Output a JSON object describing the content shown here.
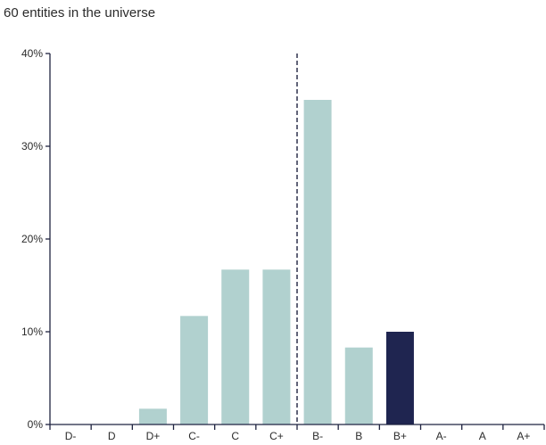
{
  "subtitle": "60 entities in the universe",
  "chart_data": {
    "type": "bar",
    "title": "",
    "subtitle": "60 entities in the universe",
    "xlabel": "",
    "ylabel": "",
    "ylim": [
      0,
      40
    ],
    "yticks": [
      0,
      10,
      20,
      30,
      40
    ],
    "ytick_labels": [
      "0%",
      "10%",
      "20%",
      "30%",
      "40%"
    ],
    "categories": [
      "D-",
      "D",
      "D+",
      "C-",
      "C",
      "C+",
      "B-",
      "B",
      "B+",
      "A-",
      "A",
      "A+"
    ],
    "values": [
      0,
      0,
      1.7,
      11.7,
      16.7,
      16.7,
      35,
      8.3,
      10,
      0,
      0,
      0
    ],
    "highlight_category": "B+",
    "reference_line_between": [
      "C+",
      "B-"
    ],
    "grid": false,
    "colors": {
      "bar": "#b1d1cf",
      "highlight": "#1f2550",
      "axis": "#1f2340"
    }
  }
}
